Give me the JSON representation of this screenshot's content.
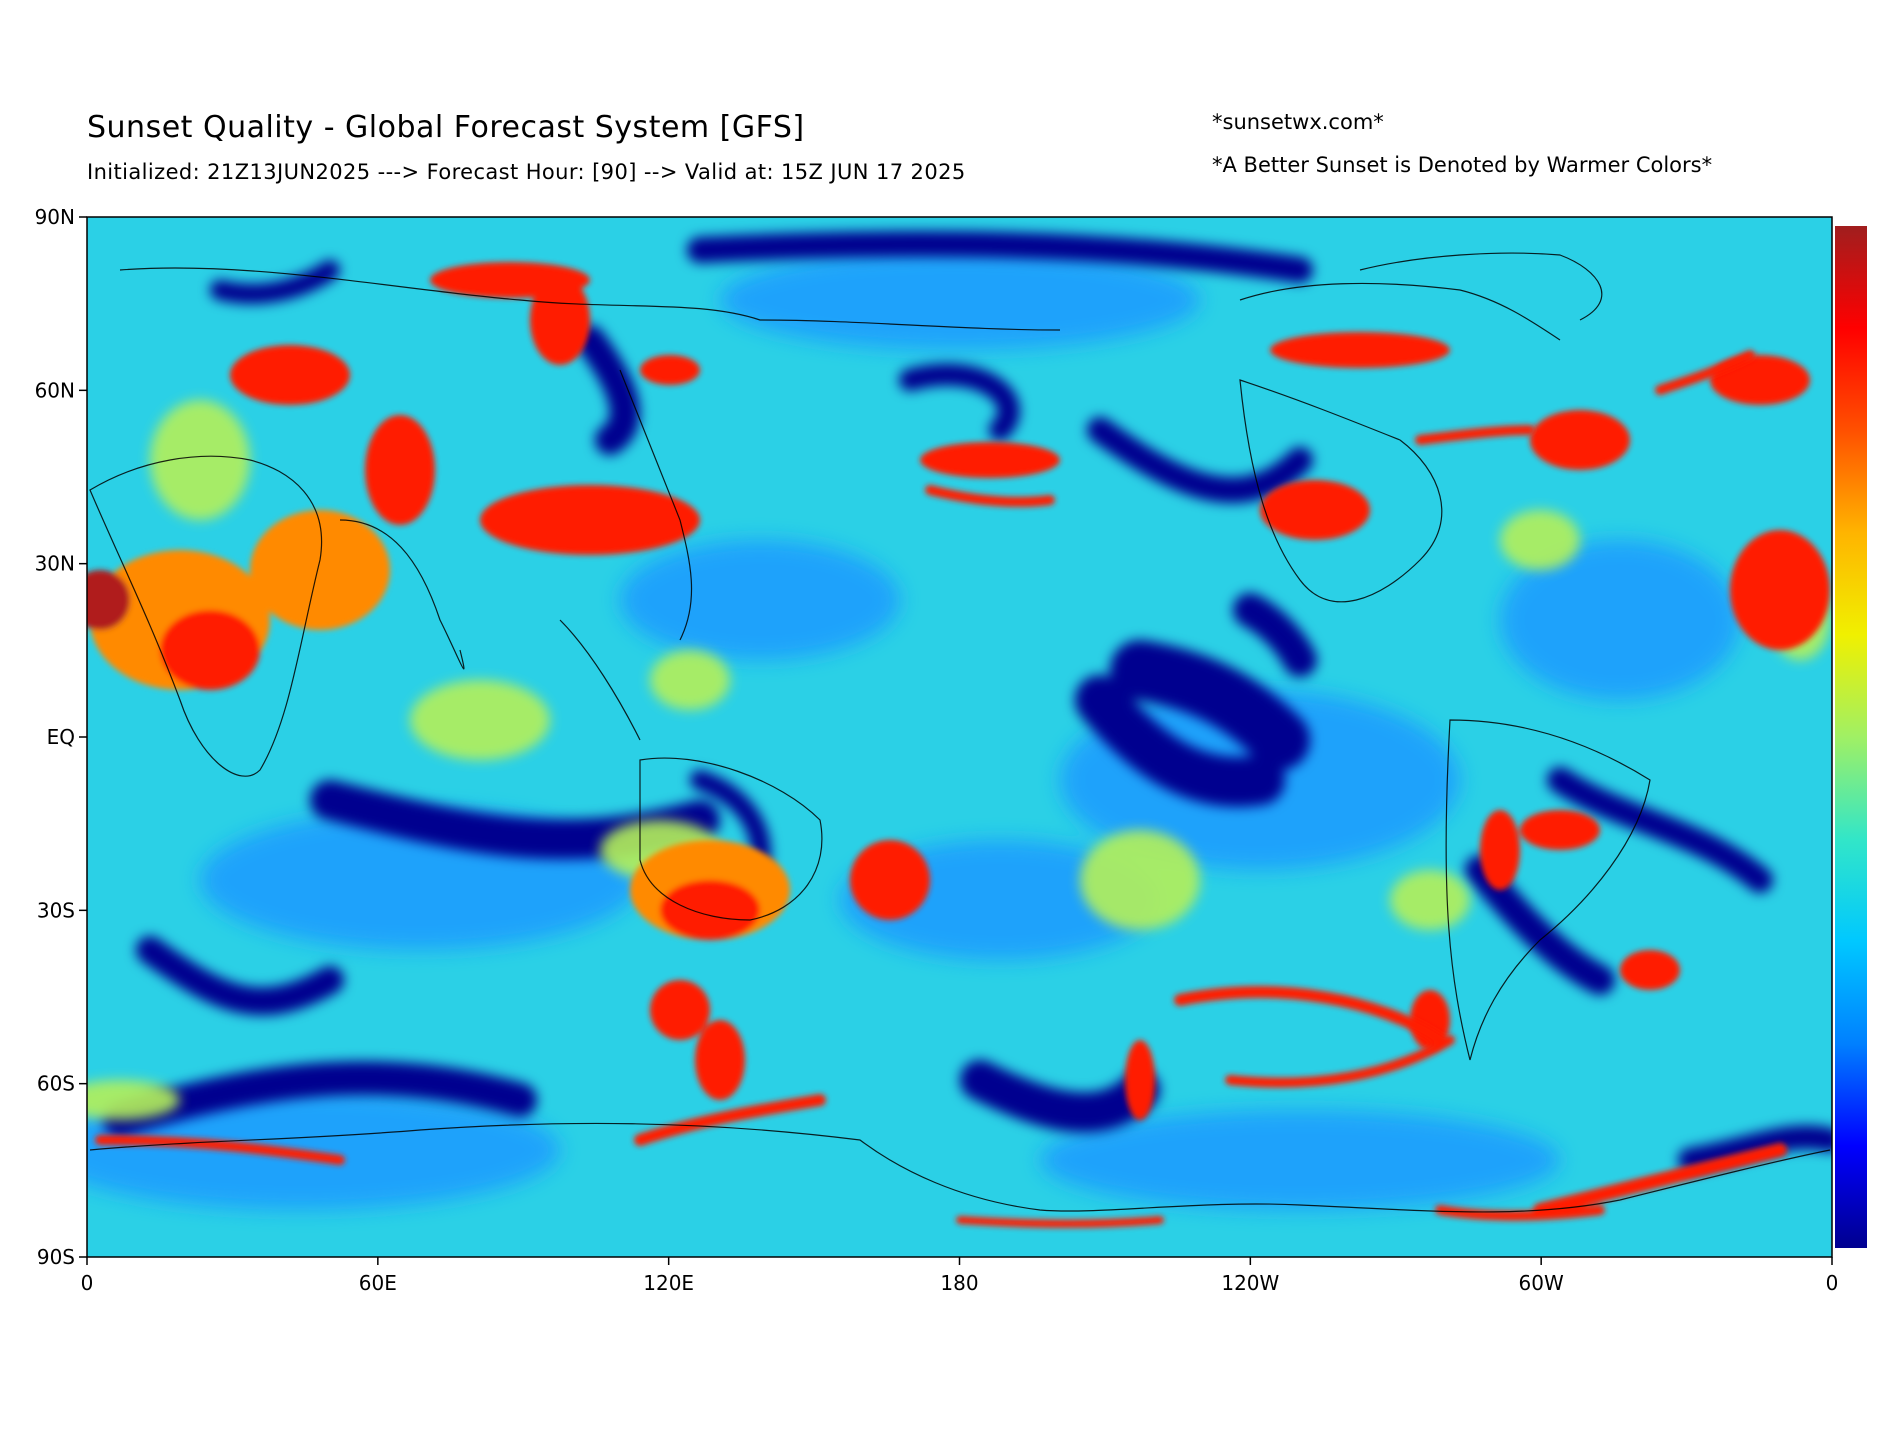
{
  "header": {
    "title": "Sunset Quality - Global Forecast System [GFS]",
    "subtitle": "Initialized: 21Z13JUN2025 ---> Forecast Hour: [90] --> Valid at: 15Z JUN 17 2025",
    "credit": "*sunsetwx.com*",
    "note": "*A Better Sunset is Denoted by Warmer Colors*"
  },
  "map": {
    "projection": "equirectangular",
    "lon_labels": [
      "0",
      "60E",
      "120E",
      "180",
      "120W",
      "60W",
      "0"
    ],
    "lat_labels": [
      "90N",
      "60N",
      "30N",
      "EQ",
      "30S",
      "60S",
      "90S"
    ],
    "colormap": "jet",
    "colors": {
      "dark_blue": "#00008f",
      "blue": "#0a3cff",
      "light_blue": "#1e9bff",
      "cyan": "#2bd0e6",
      "green_yellow": "#b4f05a",
      "yellow": "#fff000",
      "orange": "#ff8a00",
      "red": "#ff1a00",
      "dark_red": "#b01c1c"
    },
    "background_field": "cyan"
  },
  "colorbar": {
    "orientation": "vertical",
    "labels_shown": false,
    "colors": [
      "#00008f",
      "#0000ff",
      "#0080ff",
      "#00c8ff",
      "#32e6c8",
      "#a0f064",
      "#f0f000",
      "#ffb400",
      "#ff5000",
      "#ff0000",
      "#a01e1e"
    ]
  }
}
